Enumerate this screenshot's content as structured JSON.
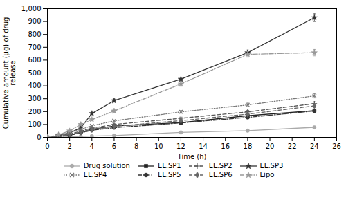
{
  "chart_data": {
    "type": "line",
    "xlabel": "Time (h)",
    "ylabel": "Cumulative amount (µg) of drug\nrelease",
    "x": [
      0,
      1,
      2,
      3,
      4,
      6,
      12,
      18,
      24
    ],
    "series": [
      {
        "name": "Drug solution",
        "color": "#aaaaaa",
        "marker": "circle",
        "line_style": "solid",
        "values": [
          0,
          2,
          4,
          7,
          10,
          14,
          38,
          52,
          78
        ],
        "errors": [
          0,
          0.5,
          0.5,
          1,
          1,
          1,
          3,
          4,
          5
        ]
      },
      {
        "name": "EL.SP1",
        "color": "#222222",
        "marker": "square",
        "line_style": "solid",
        "values": [
          0,
          8,
          18,
          40,
          62,
          88,
          115,
          168,
          208
        ],
        "errors": [
          0,
          1,
          2,
          3,
          4,
          5,
          8,
          10,
          12
        ]
      },
      {
        "name": "EL.SP2",
        "color": "#555555",
        "marker": "plus",
        "line_style": "dashed",
        "values": [
          0,
          12,
          26,
          48,
          72,
          100,
          148,
          198,
          262
        ],
        "errors": [
          0,
          1,
          2,
          4,
          5,
          6,
          9,
          12,
          14
        ]
      },
      {
        "name": "EL.SP3",
        "color": "#333333",
        "marker": "star",
        "line_style": "solid",
        "values": [
          0,
          15,
          35,
          75,
          185,
          285,
          452,
          658,
          930
        ],
        "errors": [
          0,
          2,
          3,
          5,
          8,
          12,
          15,
          20,
          30
        ]
      },
      {
        "name": "EL.SP4",
        "color": "#777777",
        "marker": "x",
        "line_style": "dotted",
        "values": [
          0,
          16,
          38,
          62,
          90,
          128,
          198,
          252,
          322
        ],
        "errors": [
          0,
          2,
          3,
          4,
          6,
          7,
          11,
          14,
          16
        ]
      },
      {
        "name": "EL.SP5",
        "color": "#333333",
        "marker": "circle",
        "line_style": "dashdot",
        "values": [
          0,
          7,
          16,
          35,
          55,
          75,
          112,
          155,
          205
        ],
        "errors": [
          0,
          1,
          1,
          2,
          3,
          4,
          7,
          9,
          11
        ]
      },
      {
        "name": "EL.SP6",
        "color": "#666666",
        "marker": "diamond",
        "line_style": "dashed",
        "values": [
          0,
          9,
          21,
          40,
          60,
          85,
          130,
          180,
          245
        ],
        "errors": [
          0,
          1,
          2,
          3,
          4,
          5,
          8,
          10,
          13
        ]
      },
      {
        "name": "Lipo",
        "color": "#999999",
        "marker": "star",
        "line_style": "dashdot",
        "values": [
          0,
          20,
          50,
          100,
          138,
          205,
          415,
          645,
          658
        ],
        "errors": [
          0,
          2,
          4,
          7,
          9,
          11,
          18,
          22,
          25
        ]
      }
    ],
    "xlim": [
      0,
      26
    ],
    "ylim": [
      0,
      1000
    ],
    "xticks": [
      0,
      2,
      4,
      6,
      8,
      10,
      12,
      14,
      16,
      18,
      20,
      22,
      24,
      26
    ],
    "yticks": [
      0,
      100,
      200,
      300,
      400,
      500,
      600,
      700,
      800,
      900,
      1000
    ],
    "grid": false,
    "legend": "bottom"
  }
}
